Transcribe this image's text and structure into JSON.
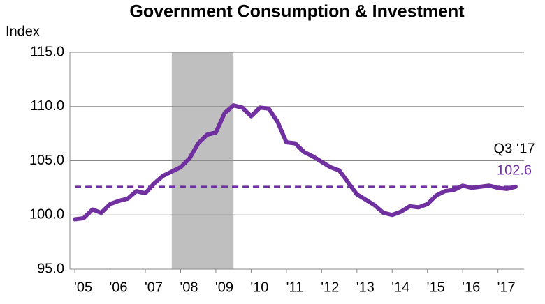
{
  "chart_data": {
    "type": "line",
    "title": "Government Consumption & Investment",
    "y_label": "Index",
    "x": [
      2005,
      2005.25,
      2005.5,
      2005.75,
      2006,
      2006.25,
      2006.5,
      2006.75,
      2007,
      2007.25,
      2007.5,
      2007.75,
      2008,
      2008.25,
      2008.5,
      2008.75,
      2009,
      2009.25,
      2009.5,
      2009.75,
      2010,
      2010.25,
      2010.5,
      2010.75,
      2011,
      2011.25,
      2011.5,
      2011.75,
      2012,
      2012.25,
      2012.5,
      2012.75,
      2013,
      2013.25,
      2013.5,
      2013.75,
      2014,
      2014.25,
      2014.5,
      2014.75,
      2015,
      2015.25,
      2015.5,
      2015.75,
      2016,
      2016.25,
      2016.5,
      2016.75,
      2017,
      2017.25,
      2017.5
    ],
    "series": [
      {
        "color": "#7030a0",
        "values": [
          99.6,
          99.7,
          100.5,
          100.2,
          101.0,
          101.3,
          101.5,
          102.2,
          102.0,
          102.9,
          103.6,
          104.0,
          104.4,
          105.2,
          106.6,
          107.4,
          107.6,
          109.4,
          110.1,
          109.9,
          109.1,
          109.9,
          109.8,
          108.6,
          106.7,
          106.6,
          105.8,
          105.4,
          104.9,
          104.4,
          104.1,
          103.0,
          101.9,
          101.4,
          100.9,
          100.2,
          100.0,
          100.3,
          100.8,
          100.7,
          101.0,
          101.8,
          102.2,
          102.3,
          102.7,
          102.5,
          102.6,
          102.7,
          102.5,
          102.4,
          102.6
        ]
      }
    ],
    "reference_line": {
      "value": 102.6,
      "color": "#7030a0",
      "label_title": "Q3 ‘17"
    },
    "shaded_regions": [
      {
        "range": [
          2007.75,
          2009.5
        ],
        "color": "#bfbfbf"
      }
    ],
    "xlim": [
      2004.86,
      2017.74
    ],
    "xticks": [
      {
        "value": 2005,
        "label": "'05"
      },
      {
        "value": 2006,
        "label": "'06"
      },
      {
        "value": 2007,
        "label": "'07"
      },
      {
        "value": 2008,
        "label": "'08"
      },
      {
        "value": 2009,
        "label": "'09"
      },
      {
        "value": 2010,
        "label": "'10"
      },
      {
        "value": 2011,
        "label": "'11"
      },
      {
        "value": 2012,
        "label": "'12"
      },
      {
        "value": 2013,
        "label": "'13"
      },
      {
        "value": 2014,
        "label": "'14"
      },
      {
        "value": 2015,
        "label": "'15"
      },
      {
        "value": 2016,
        "label": "'16"
      },
      {
        "value": 2017,
        "label": "'17"
      }
    ],
    "ylim": [
      95,
      115
    ],
    "yticks": [
      {
        "value": 95,
        "label": "95.0"
      },
      {
        "value": 100,
        "label": "100.0"
      },
      {
        "value": 105,
        "label": "105.0"
      },
      {
        "value": 110,
        "label": "110.0"
      },
      {
        "value": 115,
        "label": "115.0"
      }
    ],
    "grid": true
  }
}
